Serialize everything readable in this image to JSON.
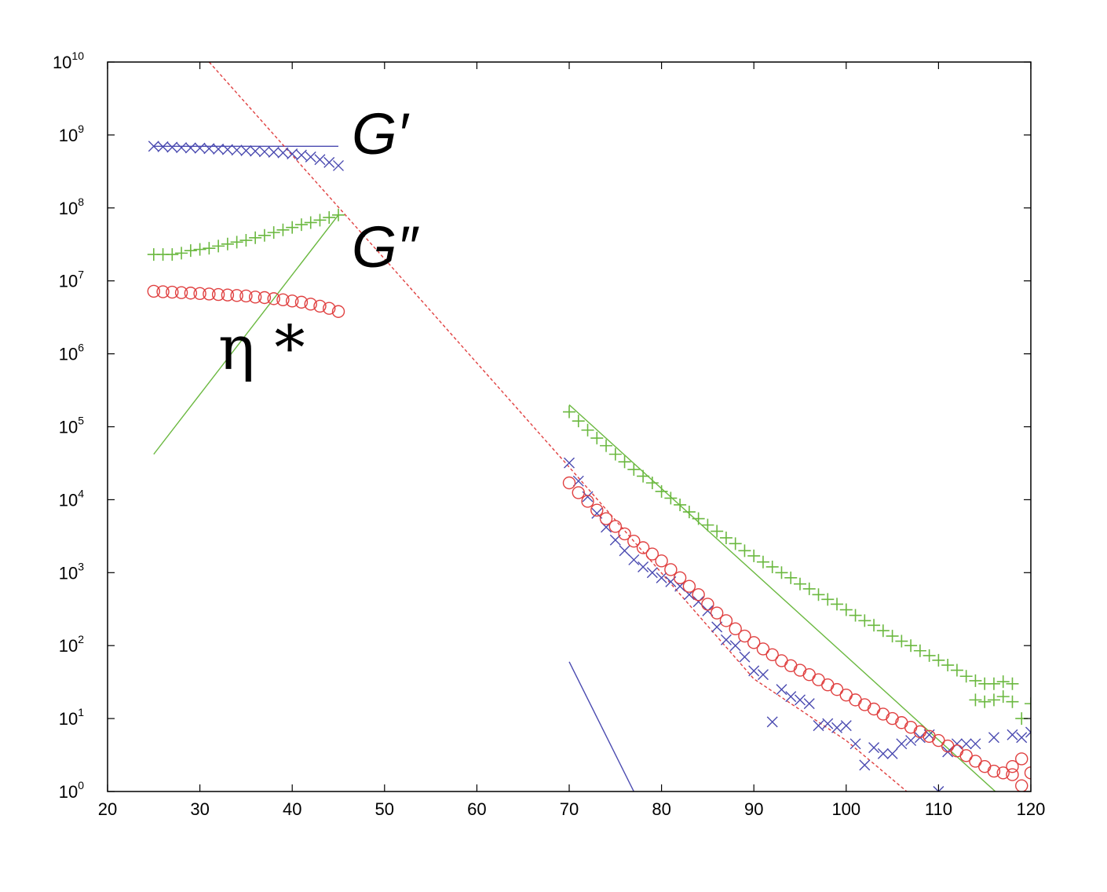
{
  "chart_data": {
    "type": "scatter",
    "title": "",
    "xlabel": "",
    "ylabel": "",
    "xlim": [
      20,
      120
    ],
    "ylim_log10": [
      0,
      10
    ],
    "yscale": "log",
    "grid": false,
    "x_ticks": [
      20,
      30,
      40,
      50,
      60,
      70,
      80,
      90,
      100,
      110,
      120
    ],
    "y_tick_exponents": [
      0,
      1,
      2,
      3,
      4,
      5,
      6,
      7,
      8,
      9,
      10
    ],
    "y_tick_base": "10",
    "annotations": [
      {
        "key": "g_prime",
        "text": "G′"
      },
      {
        "key": "g_double",
        "text": "G″"
      },
      {
        "key": "eta",
        "text": "η *"
      }
    ],
    "series": [
      {
        "key": "g_prime",
        "marker": "x",
        "color": "#4a4ab0",
        "points": [
          [
            25,
            700000000.0
          ],
          [
            26,
            690000000.0
          ],
          [
            27,
            680000000.0
          ],
          [
            28,
            670000000.0
          ],
          [
            29,
            665000000.0
          ],
          [
            30,
            660000000.0
          ],
          [
            31,
            650000000.0
          ],
          [
            32,
            640000000.0
          ],
          [
            33,
            630000000.0
          ],
          [
            34,
            620000000.0
          ],
          [
            35,
            610000000.0
          ],
          [
            36,
            600000000.0
          ],
          [
            37,
            590000000.0
          ],
          [
            38,
            580000000.0
          ],
          [
            39,
            570000000.0
          ],
          [
            40,
            550000000.0
          ],
          [
            41,
            530000000.0
          ],
          [
            42,
            500000000.0
          ],
          [
            43,
            460000000.0
          ],
          [
            44,
            420000000.0
          ],
          [
            45,
            380000000.0
          ],
          [
            70,
            32000.0
          ],
          [
            71,
            18000.0
          ],
          [
            72,
            11000.0
          ],
          [
            73,
            6500.0
          ],
          [
            74,
            4200.0
          ],
          [
            75,
            2800.0
          ],
          [
            76,
            2000.0
          ],
          [
            77,
            1500.0
          ],
          [
            78,
            1200.0
          ],
          [
            79,
            1000.0
          ],
          [
            80,
            850.0
          ],
          [
            81,
            750.0
          ],
          [
            82,
            650.0
          ],
          [
            83,
            500.0
          ],
          [
            84,
            400.0
          ],
          [
            85,
            300.0
          ],
          [
            86,
            180.0
          ],
          [
            87,
            120.0
          ],
          [
            88,
            100.0
          ],
          [
            89,
            70.0
          ],
          [
            90,
            45.0
          ],
          [
            91,
            40.0
          ],
          [
            92,
            9.0
          ],
          [
            93,
            25.0
          ],
          [
            94,
            20.0
          ],
          [
            95,
            18.0
          ],
          [
            96,
            16.0
          ],
          [
            97,
            8.0
          ],
          [
            98,
            8.5
          ],
          [
            99,
            7.5
          ],
          [
            100,
            8.0
          ],
          [
            101,
            4.5
          ],
          [
            102,
            2.3
          ],
          [
            103,
            4.0
          ],
          [
            104,
            3.3
          ],
          [
            105,
            3.3
          ],
          [
            106,
            4.5
          ],
          [
            107,
            5.0
          ],
          [
            108,
            5.5
          ],
          [
            109,
            6.0
          ],
          [
            110,
            1.0
          ],
          [
            111,
            3.5
          ],
          [
            112,
            4.5
          ],
          [
            113,
            4.5
          ],
          [
            114,
            4.5
          ],
          [
            116,
            5.5
          ],
          [
            118,
            6.0
          ],
          [
            119,
            5.5
          ],
          [
            120,
            6.5
          ]
        ]
      },
      {
        "key": "g_double",
        "marker": "+",
        "color": "#6ab83f",
        "points": [
          [
            25,
            23000000.0
          ],
          [
            26,
            23000000.0
          ],
          [
            27,
            23000000.0
          ],
          [
            28,
            24000000.0
          ],
          [
            29,
            26000000.0
          ],
          [
            30,
            27000000.0
          ],
          [
            31,
            28000000.0
          ],
          [
            32,
            30000000.0
          ],
          [
            33,
            32000000.0
          ],
          [
            34,
            34000000.0
          ],
          [
            35,
            36000000.0
          ],
          [
            36,
            39000000.0
          ],
          [
            37,
            42000000.0
          ],
          [
            38,
            46000000.0
          ],
          [
            39,
            50000000.0
          ],
          [
            40,
            54000000.0
          ],
          [
            41,
            59000000.0
          ],
          [
            42,
            63000000.0
          ],
          [
            43,
            68000000.0
          ],
          [
            44,
            74000000.0
          ],
          [
            45,
            80000000.0
          ],
          [
            70,
            160000.0
          ],
          [
            71,
            120000.0
          ],
          [
            72,
            90000.0
          ],
          [
            73,
            70000.0
          ],
          [
            74,
            55000.0
          ],
          [
            75,
            42000.0
          ],
          [
            76,
            33000.0
          ],
          [
            77,
            26000.0
          ],
          [
            78,
            21000.0
          ],
          [
            79,
            17000.0
          ],
          [
            80,
            13000.0
          ],
          [
            81,
            10500.0
          ],
          [
            82,
            8500.0
          ],
          [
            83,
            6800.0
          ],
          [
            84,
            5500.0
          ],
          [
            85,
            4500.0
          ],
          [
            86,
            3700.0
          ],
          [
            87,
            3000.0
          ],
          [
            88,
            2500.0
          ],
          [
            89,
            2000.0
          ],
          [
            90,
            1700.0
          ],
          [
            91,
            1400.0
          ],
          [
            92,
            1200.0
          ],
          [
            93,
            1000.0
          ],
          [
            94,
            850.0
          ],
          [
            95,
            700.0
          ],
          [
            96,
            600.0
          ],
          [
            97,
            500.0
          ],
          [
            98,
            430.0
          ],
          [
            99,
            370.0
          ],
          [
            100,
            310.0
          ],
          [
            101,
            260.0
          ],
          [
            102,
            220.0
          ],
          [
            103,
            190.0
          ],
          [
            104,
            160.0
          ],
          [
            105,
            135.0
          ],
          [
            106,
            115.0
          ],
          [
            107,
            100.0
          ],
          [
            108,
            85.0
          ],
          [
            109,
            73.0
          ],
          [
            110,
            63.0
          ],
          [
            111,
            54.0
          ],
          [
            112,
            46.0
          ],
          [
            113,
            38.0
          ],
          [
            114,
            33.0
          ],
          [
            115,
            30.0
          ],
          [
            116,
            30.0
          ],
          [
            117,
            32.0
          ],
          [
            114,
            18.0
          ],
          [
            115,
            17.0
          ],
          [
            116,
            18.0
          ],
          [
            117,
            20.0
          ],
          [
            118,
            17.0
          ],
          [
            119,
            10.0
          ],
          [
            120,
            16.0
          ],
          [
            118,
            30.0
          ]
        ]
      },
      {
        "key": "eta",
        "marker": "o",
        "color": "#e04040",
        "points": [
          [
            25,
            7200000.0
          ],
          [
            26,
            7100000.0
          ],
          [
            27,
            7000000.0
          ],
          [
            28,
            6900000.0
          ],
          [
            29,
            6800000.0
          ],
          [
            30,
            6700000.0
          ],
          [
            31,
            6600000.0
          ],
          [
            32,
            6500000.0
          ],
          [
            33,
            6400000.0
          ],
          [
            34,
            6300000.0
          ],
          [
            35,
            6200000.0
          ],
          [
            36,
            6000000.0
          ],
          [
            37,
            5900000.0
          ],
          [
            38,
            5700000.0
          ],
          [
            39,
            5500000.0
          ],
          [
            40,
            5300000.0
          ],
          [
            41,
            5100000.0
          ],
          [
            42,
            4800000.0
          ],
          [
            43,
            4500000.0
          ],
          [
            44,
            4200000.0
          ],
          [
            45,
            3800000.0
          ],
          [
            70,
            17000.0
          ],
          [
            71,
            12500.0
          ],
          [
            72,
            9500.0
          ],
          [
            73,
            7200.0
          ],
          [
            74,
            5500.0
          ],
          [
            75,
            4300.0
          ],
          [
            76,
            3400.0
          ],
          [
            77,
            2700.0
          ],
          [
            78,
            2200.0
          ],
          [
            79,
            1800.0
          ],
          [
            80,
            1450.0
          ],
          [
            81,
            1100.0
          ],
          [
            82,
            850.0
          ],
          [
            83,
            650.0
          ],
          [
            84,
            500.0
          ],
          [
            85,
            370.0
          ],
          [
            86,
            280.0
          ],
          [
            87,
            220.0
          ],
          [
            88,
            170.0
          ],
          [
            89,
            135.0
          ],
          [
            90,
            110.0
          ],
          [
            91,
            90.0
          ],
          [
            92,
            75.0
          ],
          [
            93,
            62.0
          ],
          [
            94,
            53.0
          ],
          [
            95,
            46.0
          ],
          [
            96,
            40.0
          ],
          [
            97,
            34.0
          ],
          [
            98,
            29.0
          ],
          [
            99,
            25.0
          ],
          [
            100,
            21.0
          ],
          [
            101,
            18.0
          ],
          [
            102,
            15.5
          ],
          [
            103,
            13.5
          ],
          [
            104,
            11.5
          ],
          [
            105,
            10.0
          ],
          [
            106,
            8.8
          ],
          [
            107,
            7.6
          ],
          [
            108,
            6.6
          ],
          [
            109,
            5.7
          ],
          [
            110,
            5.0
          ],
          [
            111,
            4.2
          ],
          [
            112,
            3.6
          ],
          [
            113,
            3.1
          ],
          [
            114,
            2.6
          ],
          [
            115,
            2.2
          ],
          [
            116,
            1.9
          ],
          [
            117,
            1.8
          ],
          [
            118,
            2.2
          ],
          [
            119,
            2.8
          ],
          [
            120,
            1.8
          ],
          [
            119,
            1.2
          ],
          [
            118,
            1.7
          ]
        ]
      }
    ],
    "fit_lines": [
      {
        "key": "g_prime_fit_low",
        "color": "#4a4ab0",
        "dash": "",
        "points": [
          [
            25,
            700000000.0
          ],
          [
            45,
            700000000.0
          ]
        ]
      },
      {
        "key": "g_prime_fit_high",
        "color": "#4a4ab0",
        "dash": "",
        "points": [
          [
            70,
            60.0
          ],
          [
            77,
            1.0
          ]
        ]
      },
      {
        "key": "g_double_fit_low",
        "color": "#6ab83f",
        "dash": "",
        "points": [
          [
            25,
            42000.0
          ],
          [
            45,
            80000000.0
          ]
        ]
      },
      {
        "key": "g_double_fit_high",
        "color": "#6ab83f",
        "dash": "",
        "points": [
          [
            70,
            200000.0
          ],
          [
            117,
            0.8
          ]
        ]
      },
      {
        "key": "eta_fit",
        "color": "#e04040",
        "dash": "4 3",
        "points": [
          [
            31,
            10000000000.0
          ],
          [
            50,
            20000000.0
          ],
          [
            70,
            28000.0
          ],
          [
            90,
            35.0
          ],
          [
            100,
            5.0
          ],
          [
            107,
            0.9
          ]
        ]
      }
    ]
  }
}
